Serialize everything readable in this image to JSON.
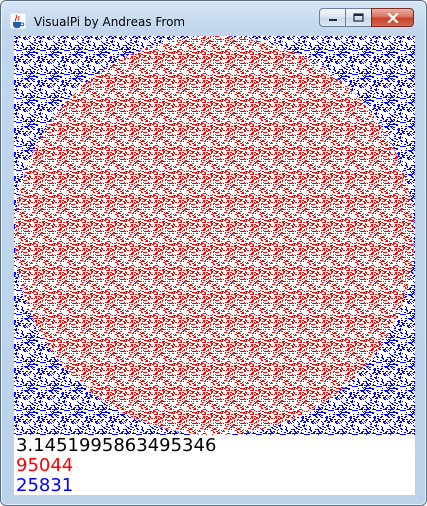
{
  "window": {
    "title": "VisualPi by Andreas From",
    "icon": "java-coffee-cup-icon",
    "buttons": [
      {
        "name": "minimize-button",
        "icon": "minimize-icon"
      },
      {
        "name": "maximize-button",
        "icon": "maximize-icon"
      },
      {
        "name": "close-button",
        "icon": "close-icon"
      }
    ]
  },
  "simulation": {
    "pi_estimate": "3.1451995863495346",
    "points_inside": "95044",
    "points_outside": "25831",
    "colors": {
      "inside": "#ff0000",
      "outside": "#0000ff",
      "background": "#ffffff"
    }
  }
}
